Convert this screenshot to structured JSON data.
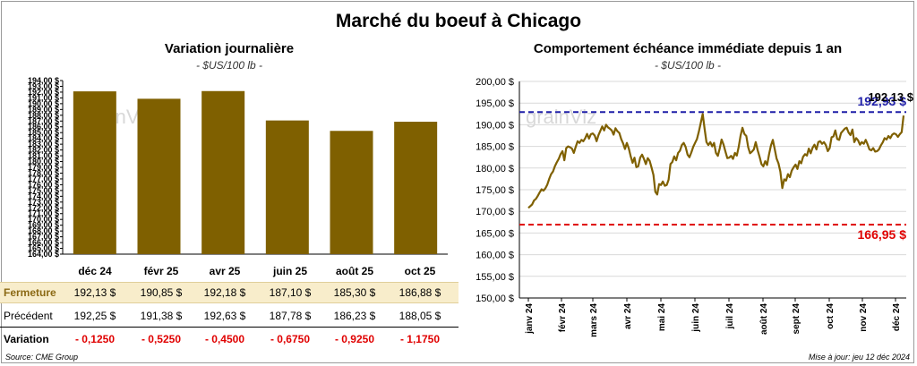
{
  "title": "Marché du boeuf à Chicago",
  "left_panel": {
    "subtitle": "Variation journalière",
    "unit": "- $US/100 lb -",
    "watermark": "grainViz"
  },
  "right_panel": {
    "subtitle": "Comportement échéance immédiate depuis 1 an",
    "unit": "- $US/100 lb -",
    "watermark": "grainViz"
  },
  "table": {
    "months": [
      "déc 24",
      "févr 25",
      "avr 25",
      "juin 25",
      "août 25",
      "oct 25"
    ],
    "close_label": "Fermeture",
    "close": [
      "192,13 $",
      "190,85 $",
      "192,18 $",
      "187,10 $",
      "185,30 $",
      "186,88 $"
    ],
    "prev_label": "Précédent",
    "prev": [
      "192,25 $",
      "191,38 $",
      "192,63 $",
      "187,78 $",
      "186,23 $",
      "188,05 $"
    ],
    "var_label": "Variation",
    "var": [
      "- 0,1250",
      "- 0,5250",
      "- 0,4500",
      "- 0,6750",
      "- 0,9250",
      "- 1,1750"
    ]
  },
  "footer": {
    "source": "Source: CME Group",
    "update": "Mise à jour: jeu 12 déc 2024"
  },
  "colors": {
    "bar": "#7f6000",
    "line": "#7f6000",
    "high": "#1f1fa8",
    "low": "#e00000",
    "grid": "#d9d9d9"
  },
  "chart_data": [
    {
      "type": "bar",
      "categories": [
        "déc 24",
        "févr 25",
        "avr 25",
        "juin 25",
        "août 25",
        "oct 25"
      ],
      "values": [
        192.13,
        190.85,
        192.18,
        187.1,
        185.3,
        186.88
      ],
      "ylim": [
        164,
        194
      ],
      "ytick_step": 1,
      "ytick_labels": [
        "164,00 $",
        "165,00 $",
        "166,00 $",
        "167,00 $",
        "168,00 $",
        "169,00 $",
        "170,00 $",
        "171,00 $",
        "172,00 $",
        "173,00 $",
        "174,00 $",
        "175,00 $",
        "176,00 $",
        "177,00 $",
        "178,00 $",
        "179,00 $",
        "180,00 $",
        "181,00 $",
        "182,00 $",
        "183,00 $",
        "184,00 $",
        "185,00 $",
        "186,00 $",
        "187,00 $",
        "188,00 $",
        "189,00 $",
        "190,00 $",
        "191,00 $",
        "192,00 $",
        "193,00 $",
        "194,00 $"
      ],
      "grid": false
    },
    {
      "type": "line",
      "x_start": "2024-01-02",
      "x_end": "2024-12-12",
      "xtick_labels": [
        "janv 24",
        "févr 24",
        "mars 24",
        "avr 24",
        "mai 24",
        "juin 24",
        "juil 24",
        "août 24",
        "sept 24",
        "oct 24",
        "nov 24",
        "déc 24"
      ],
      "ylim": [
        150,
        200
      ],
      "ytick_labels": [
        "150,00 $",
        "155,00 $",
        "160,00 $",
        "165,00 $",
        "170,00 $",
        "175,00 $",
        "180,00 $",
        "185,00 $",
        "190,00 $",
        "195,00 $",
        "200,00 $"
      ],
      "grid": true,
      "series": [
        {
          "values": [
            170.8,
            171.2,
            171.6,
            172.5,
            172.9,
            173.6,
            174.4,
            175.1,
            174.8,
            175.3,
            176.2,
            177.5,
            178.6,
            179.2,
            180.4,
            181.3,
            182.1,
            183.2,
            183.9,
            181.8,
            184.6,
            185.0,
            184.8,
            184.5,
            183.5,
            184.9,
            186.2,
            185.8,
            186.5,
            186.2,
            186.9,
            187.9,
            186.8,
            187.8,
            188.0,
            187.5,
            186.2,
            187.6,
            188.6,
            189.6,
            188.7,
            190.0,
            189.4,
            189.1,
            188.7,
            187.7,
            189.2,
            188.5,
            188.1,
            186.7,
            185.7,
            184.4,
            185.8,
            184.5,
            182.7,
            181.2,
            182.4,
            180.2,
            180.4,
            182.4,
            183.1,
            182.1,
            180.9,
            182.3,
            181.7,
            180.1,
            178.4,
            174.5,
            173.9,
            176.3,
            176.1,
            176.9,
            175.9,
            176.1,
            177.3,
            180.9,
            181.4,
            182.7,
            181.8,
            183.5,
            184.0,
            185.3,
            185.8,
            184.9,
            183.1,
            182.5,
            183.6,
            184.9,
            185.8,
            186.7,
            188.5,
            190.5,
            192.5,
            189.1,
            186.0,
            185.3,
            186.0,
            185.0,
            185.8,
            183.5,
            182.8,
            184.5,
            186.6,
            185.4,
            183.8,
            182.3,
            182.4,
            182.8,
            182.1,
            183.5,
            182.9,
            184.9,
            187.5,
            189.3,
            187.9,
            187.4,
            184.8,
            183.4,
            183.8,
            184.3,
            186.0,
            184.1,
            182.6,
            180.9,
            180.4,
            181.6,
            180.7,
            183.2,
            185.2,
            186.5,
            184.4,
            182.2,
            181.1,
            179.2,
            175.4,
            177.4,
            177.1,
            178.6,
            177.9,
            179.4,
            180.2,
            180.8,
            179.8,
            181.6,
            181.1,
            182.6,
            183.2,
            182.9,
            184.5,
            183.4,
            184.7,
            185.4,
            184.3,
            186.0,
            186.2,
            185.6,
            186.0,
            185.3,
            183.9,
            184.6,
            187.1,
            187.3,
            188.7,
            186.7,
            186.5,
            188.1,
            188.6,
            189.1,
            189.3,
            188.2,
            187.6,
            188.9,
            186.0,
            186.9,
            186.4,
            185.4,
            186.0,
            185.6,
            186.5,
            185.5,
            184.3,
            184.1,
            184.6,
            183.8,
            183.9,
            184.3,
            185.2,
            185.9,
            186.9,
            186.6,
            187.4,
            186.9,
            187.7,
            188.0,
            187.8,
            187.2,
            187.8,
            188.3,
            192.13
          ]
        }
      ],
      "hlines": [
        {
          "value": 192.93,
          "label": "192,93 $",
          "color": "#1f1fa8",
          "style": "dashed"
        },
        {
          "value": 166.95,
          "label": "166,95 $",
          "color": "#e00000",
          "style": "dashed"
        }
      ],
      "last_value_label": "192,13 $"
    }
  ]
}
